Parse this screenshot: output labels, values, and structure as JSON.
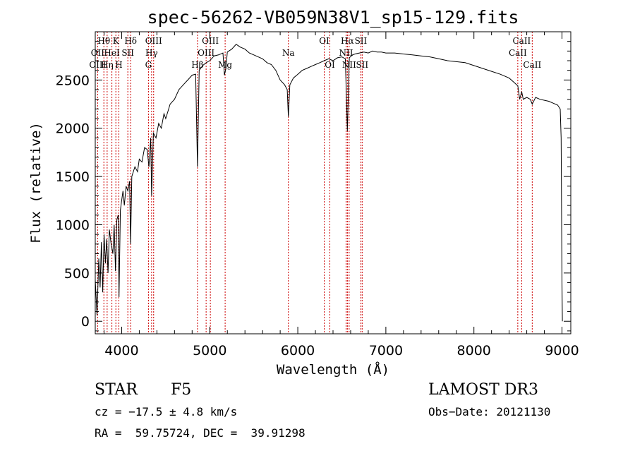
{
  "chart_data": {
    "type": "line",
    "title": "spec-56262-VB059N38V1_sp15-129.fits",
    "xlabel": "Wavelength (Å)",
    "ylabel": "Flux (relative)",
    "xlim": [
      3700,
      9100
    ],
    "ylim": [
      -130,
      3000
    ],
    "xticks": [
      4000,
      5000,
      6000,
      7000,
      8000,
      9000
    ],
    "yticks": [
      0,
      500,
      1000,
      1500,
      2000,
      2500
    ],
    "grid": false,
    "line_color": "#000000",
    "marker_color": "#cc0000",
    "series": [
      {
        "points": [
          [
            3700,
            430
          ],
          [
            3720,
            60
          ],
          [
            3740,
            650
          ],
          [
            3755,
            350
          ],
          [
            3770,
            820
          ],
          [
            3785,
            300
          ],
          [
            3800,
            900
          ],
          [
            3815,
            600
          ],
          [
            3830,
            850
          ],
          [
            3845,
            500
          ],
          [
            3860,
            950
          ],
          [
            3880,
            800
          ],
          [
            3900,
            700
          ],
          [
            3915,
            1000
          ],
          [
            3930,
            520
          ],
          [
            3945,
            1050
          ],
          [
            3960,
            1100
          ],
          [
            3970,
            250
          ],
          [
            3985,
            1150
          ],
          [
            4000,
            1250
          ],
          [
            4015,
            1350
          ],
          [
            4030,
            1200
          ],
          [
            4050,
            1400
          ],
          [
            4070,
            1350
          ],
          [
            4090,
            1450
          ],
          [
            4101,
            800
          ],
          [
            4115,
            1500
          ],
          [
            4150,
            1600
          ],
          [
            4180,
            1550
          ],
          [
            4200,
            1680
          ],
          [
            4230,
            1650
          ],
          [
            4260,
            1800
          ],
          [
            4290,
            1780
          ],
          [
            4310,
            1600
          ],
          [
            4330,
            1900
          ],
          [
            4340,
            1300
          ],
          [
            4360,
            1950
          ],
          [
            4390,
            1900
          ],
          [
            4420,
            2050
          ],
          [
            4450,
            2000
          ],
          [
            4480,
            2150
          ],
          [
            4500,
            2100
          ],
          [
            4550,
            2250
          ],
          [
            4600,
            2300
          ],
          [
            4650,
            2400
          ],
          [
            4700,
            2450
          ],
          [
            4750,
            2500
          ],
          [
            4800,
            2550
          ],
          [
            4840,
            2560
          ],
          [
            4861,
            1600
          ],
          [
            4880,
            2600
          ],
          [
            4920,
            2650
          ],
          [
            4960,
            2680
          ],
          [
            5000,
            2700
          ],
          [
            5050,
            2750
          ],
          [
            5100,
            2760
          ],
          [
            5150,
            2780
          ],
          [
            5167,
            2550
          ],
          [
            5184,
            2620
          ],
          [
            5200,
            2790
          ],
          [
            5250,
            2820
          ],
          [
            5300,
            2870
          ],
          [
            5350,
            2840
          ],
          [
            5400,
            2820
          ],
          [
            5450,
            2780
          ],
          [
            5500,
            2760
          ],
          [
            5550,
            2740
          ],
          [
            5600,
            2720
          ],
          [
            5650,
            2680
          ],
          [
            5700,
            2660
          ],
          [
            5750,
            2600
          ],
          [
            5800,
            2500
          ],
          [
            5850,
            2450
          ],
          [
            5880,
            2400
          ],
          [
            5893,
            2120
          ],
          [
            5910,
            2450
          ],
          [
            5950,
            2520
          ],
          [
            6000,
            2560
          ],
          [
            6050,
            2600
          ],
          [
            6100,
            2620
          ],
          [
            6150,
            2640
          ],
          [
            6200,
            2660
          ],
          [
            6250,
            2680
          ],
          [
            6300,
            2700
          ],
          [
            6350,
            2720
          ],
          [
            6400,
            2700
          ],
          [
            6450,
            2730
          ],
          [
            6500,
            2740
          ],
          [
            6540,
            2720
          ],
          [
            6563,
            1970
          ],
          [
            6585,
            2730
          ],
          [
            6620,
            2760
          ],
          [
            6650,
            2770
          ],
          [
            6700,
            2780
          ],
          [
            6750,
            2790
          ],
          [
            6800,
            2780
          ],
          [
            6850,
            2800
          ],
          [
            6900,
            2790
          ],
          [
            6950,
            2790
          ],
          [
            7000,
            2780
          ],
          [
            7100,
            2780
          ],
          [
            7200,
            2770
          ],
          [
            7300,
            2760
          ],
          [
            7400,
            2750
          ],
          [
            7500,
            2740
          ],
          [
            7600,
            2720
          ],
          [
            7700,
            2700
          ],
          [
            7800,
            2690
          ],
          [
            7900,
            2680
          ],
          [
            8000,
            2650
          ],
          [
            8100,
            2620
          ],
          [
            8200,
            2590
          ],
          [
            8300,
            2560
          ],
          [
            8400,
            2520
          ],
          [
            8450,
            2480
          ],
          [
            8498,
            2440
          ],
          [
            8520,
            2300
          ],
          [
            8542,
            2380
          ],
          [
            8560,
            2300
          ],
          [
            8600,
            2320
          ],
          [
            8640,
            2300
          ],
          [
            8662,
            2250
          ],
          [
            8700,
            2320
          ],
          [
            8750,
            2300
          ],
          [
            8800,
            2290
          ],
          [
            8850,
            2280
          ],
          [
            8900,
            2260
          ],
          [
            8950,
            2240
          ],
          [
            8980,
            2200
          ],
          [
            8990,
            1900
          ],
          [
            9000,
            400
          ],
          [
            9005,
            0
          ]
        ]
      }
    ],
    "lines": [
      {
        "name": "Hθ",
        "x": 3798,
        "row": 0
      },
      {
        "name": "OII",
        "x": 3727,
        "row": 1
      },
      {
        "name": "OIII",
        "x": 3727,
        "row": 2
      },
      {
        "name": "Hη",
        "x": 3835,
        "row": 2
      },
      {
        "name": "HeI",
        "x": 3889,
        "row": 1
      },
      {
        "name": "K",
        "x": 3934,
        "row": 0
      },
      {
        "name": "SII",
        "x": 4070,
        "row": 1
      },
      {
        "name": "H",
        "x": 3968,
        "row": 2
      },
      {
        "name": "Hδ",
        "x": 4102,
        "row": 0
      },
      {
        "name": "OIII",
        "x": 4363,
        "row": 0
      },
      {
        "name": "Hγ",
        "x": 4340,
        "row": 1
      },
      {
        "name": "G",
        "x": 4304,
        "row": 2
      },
      {
        "name": "Hβ",
        "x": 4861,
        "row": 2
      },
      {
        "name": "OIII",
        "x": 5007,
        "row": 0
      },
      {
        "name": "OIII",
        "x": 4959,
        "row": 1
      },
      {
        "name": "Mg",
        "x": 5175,
        "row": 2
      },
      {
        "name": "Na",
        "x": 5893,
        "row": 1
      },
      {
        "name": "OI",
        "x": 6300,
        "row": 0
      },
      {
        "name": "OI",
        "x": 6364,
        "row": 2
      },
      {
        "name": "Hα",
        "x": 6563,
        "row": 0
      },
      {
        "name": "NII",
        "x": 6548,
        "row": 1
      },
      {
        "name": "NII",
        "x": 6583,
        "row": 2
      },
      {
        "name": "SII",
        "x": 6716,
        "row": 0
      },
      {
        "name": "SII",
        "x": 6731,
        "row": 2
      },
      {
        "name": "CaII",
        "x": 8542,
        "row": 0
      },
      {
        "name": "CaII",
        "x": 8498,
        "row": 1
      },
      {
        "name": "CaII",
        "x": 8662,
        "row": 2
      }
    ]
  },
  "info": {
    "class_label": "STAR",
    "subclass": "F5",
    "survey": "LAMOST DR3",
    "cz": "cz = −17.5 ± 4.8 km/s",
    "obs_date": "Obs−Date: 20121130",
    "coords": "RA =  59.75724, DEC =  39.91298"
  }
}
